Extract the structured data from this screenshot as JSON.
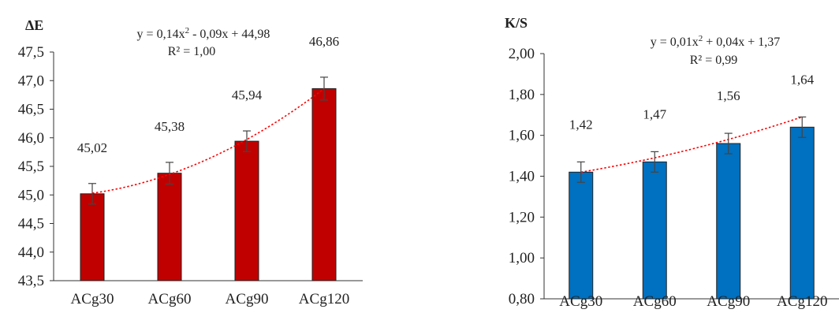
{
  "chart_data": [
    {
      "type": "bar",
      "ylabel": "ΔE",
      "categories": [
        "ACg30",
        "ACg60",
        "ACg90",
        "ACg120"
      ],
      "values": [
        45.02,
        45.38,
        45.94,
        46.86
      ],
      "value_labels": [
        "45,02",
        "45,38",
        "45,94",
        "46,86"
      ],
      "errors": [
        0.18,
        0.19,
        0.18,
        0.2
      ],
      "ylim": [
        43.5,
        47.5
      ],
      "yticks": [
        43.5,
        44.0,
        44.5,
        45.0,
        45.5,
        46.0,
        46.5,
        47.0,
        47.5
      ],
      "ytick_labels": [
        "43,5",
        "44,0",
        "44,5",
        "45,0",
        "45,5",
        "46,0",
        "46,5",
        "47,0",
        "47,5"
      ],
      "bar_color": "#C00000",
      "trendline": {
        "type": "polynomial",
        "coefficients": [
          0.14,
          -0.09,
          44.98
        ],
        "equation_prefix": "y = 0,14x",
        "equation_sup": "2",
        "equation_suffix": " - 0,09x + 44,98",
        "r2": "R² = 1,00",
        "color": "#FF0000"
      }
    },
    {
      "type": "bar",
      "ylabel": "K/S",
      "categories": [
        "ACg30",
        "ACg60",
        "ACg90",
        "ACg120"
      ],
      "values": [
        1.42,
        1.47,
        1.56,
        1.64
      ],
      "value_labels": [
        "1,42",
        "1,47",
        "1,56",
        "1,64"
      ],
      "errors": [
        0.05,
        0.05,
        0.05,
        0.05
      ],
      "ylim": [
        0.8,
        2.0
      ],
      "yticks": [
        0.8,
        1.0,
        1.2,
        1.4,
        1.6,
        1.8,
        2.0
      ],
      "ytick_labels": [
        "0,80",
        "1,00",
        "1,20",
        "1,40",
        "1,60",
        "1,80",
        "2,00"
      ],
      "bar_color": "#0070C0",
      "trendline": {
        "type": "polynomial",
        "coefficients": [
          0.01,
          0.04,
          1.37
        ],
        "equation_prefix": "y = 0,01x",
        "equation_sup": "2",
        "equation_suffix": " + 0,04x + 1,37",
        "r2": "R² = 0,99",
        "color": "#FF0000"
      }
    }
  ]
}
